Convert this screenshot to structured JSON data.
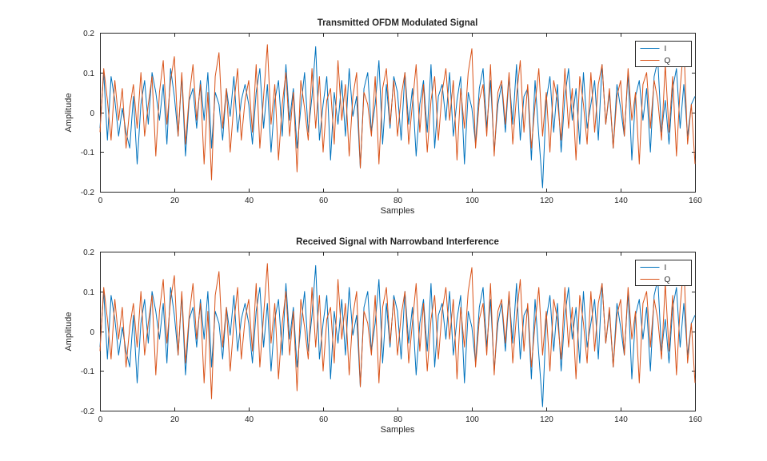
{
  "figure": {
    "background": "#ffffff",
    "axis_color": "#262626",
    "text_color": "#262626"
  },
  "chart_data": [
    {
      "type": "line",
      "title": "Transmitted OFDM Modulated Signal",
      "xlabel": "Samples",
      "ylabel": "Amplitude",
      "xlim": [
        0,
        160
      ],
      "ylim": [
        -0.2,
        0.2
      ],
      "xticks": [
        0,
        20,
        40,
        60,
        80,
        100,
        120,
        140,
        160
      ],
      "xtick_labels": [
        "0",
        "20",
        "40",
        "60",
        "80",
        "100",
        "120",
        "140",
        "160"
      ],
      "yticks": [
        -0.2,
        -0.1,
        0,
        0.1,
        0.2
      ],
      "ytick_labels": [
        "-0.2",
        "-0.1",
        "0",
        "0.1",
        "0.2"
      ],
      "grid": false,
      "legend": {
        "position": "northeast",
        "entries": [
          "I",
          "Q"
        ]
      },
      "x_start": 0,
      "x_step": 1,
      "series": [
        {
          "name": "I",
          "color": "#0072BD",
          "values": [
            -0.04,
            0.1,
            -0.07,
            0.09,
            0.03,
            -0.06,
            0.01,
            -0.05,
            -0.09,
            0.04,
            -0.13,
            0.02,
            0.08,
            -0.03,
            0.1,
            0.05,
            -0.02,
            0.07,
            -0.08,
            0.11,
            0.04,
            -0.06,
            0.09,
            -0.11,
            0.03,
            0.06,
            -0.04,
            0.08,
            -0.02,
            0.1,
            -0.09,
            0.05,
            0.02,
            -0.07,
            0.06,
            -0.01,
            0.09,
            -0.05,
            0.03,
            0.07,
            0.02,
            -0.08,
            0.05,
            0.11,
            -0.04,
            0.07,
            -0.1,
            0.03,
            0.08,
            -0.06,
            0.12,
            -0.02,
            0.06,
            -0.09,
            0.01,
            0.1,
            -0.05,
            0.04,
            0.165,
            -0.07,
            0.02,
            0.09,
            -0.12,
            0.05,
            -0.03,
            0.08,
            -0.06,
            0.11,
            -0.01,
            0.04,
            -0.14,
            0.06,
            0.1,
            -0.05,
            0.02,
            0.13,
            -0.08,
            0.07,
            -0.04,
            0.09,
            0.05,
            -0.07,
            0.1,
            -0.03,
            0.06,
            -0.11,
            0.02,
            0.08,
            -0.05,
            0.12,
            -0.09,
            0.04,
            0.07,
            -0.02,
            0.1,
            -0.06,
            0.03,
            0.09,
            -0.13,
            0.05,
            0.01,
            -0.08,
            0.06,
            0.11,
            -0.04,
            0.08,
            -0.1,
            0.02,
            0.07,
            -0.05,
            0.09,
            -0.03,
            0.12,
            -0.07,
            0.04,
            0.06,
            -0.12,
            0.08,
            -0.06,
            -0.19,
            0.03,
            0.09,
            -0.05,
            0.07,
            -0.1,
            0.04,
            0.11,
            -0.02,
            0.06,
            -0.08,
            0.1,
            -0.04,
            0.02,
            0.08,
            -0.07,
            0.12,
            -0.03,
            0.05,
            -0.09,
            0.07,
            0.01,
            -0.06,
            0.1,
            -0.12,
            0.04,
            0.08,
            -0.02,
            0.06,
            -0.1,
            0.09,
            0.13,
            -0.05,
            0.03,
            -0.08,
            0.06,
            0.11,
            -0.04,
            0.07,
            -0.06,
            0.02,
            0.04
          ]
        },
        {
          "name": "Q",
          "color": "#D95319",
          "values": [
            -0.05,
            0.11,
            0.03,
            -0.07,
            0.08,
            -0.02,
            0.06,
            -0.09,
            0.01,
            0.07,
            -0.04,
            0.1,
            -0.06,
            0.02,
            0.09,
            -0.11,
            0.05,
            0.13,
            -0.03,
            0.08,
            0.14,
            -0.06,
            0.1,
            -0.08,
            0.04,
            0.12,
            -0.02,
            0.07,
            -0.13,
            0.05,
            -0.17,
            0.09,
            0.15,
            -0.04,
            0.06,
            -0.1,
            0.02,
            0.11,
            -0.07,
            0.03,
            0.08,
            -0.05,
            0.12,
            -0.09,
            0.04,
            0.17,
            -0.03,
            0.07,
            -0.12,
            0.02,
            0.1,
            -0.06,
            0.05,
            -0.15,
            0.08,
            0.01,
            -0.07,
            0.11,
            -0.04,
            0.09,
            -0.1,
            0.03,
            0.06,
            -0.08,
            0.13,
            -0.02,
            0.07,
            -0.11,
            0.04,
            0.1,
            -0.14,
            0.05,
            0.02,
            -0.06,
            0.09,
            -0.13,
            0.06,
            0.11,
            -0.03,
            0.08,
            -0.06,
            0.04,
            0.1,
            -0.08,
            0.02,
            0.12,
            -0.05,
            0.07,
            -0.1,
            0.03,
            0.09,
            -0.07,
            0.05,
            0.11,
            -0.02,
            0.08,
            -0.12,
            0.06,
            -0.04,
            0.1,
            0.16,
            -0.09,
            0.03,
            0.07,
            -0.06,
            0.12,
            -0.11,
            0.05,
            0.08,
            -0.03,
            0.1,
            -0.08,
            0.04,
            0.13,
            -0.05,
            0.07,
            -0.09,
            0.02,
            0.11,
            -0.06,
            0.05,
            -0.1,
            0.08,
            0.03,
            -0.07,
            0.11,
            -0.04,
            0.06,
            -0.12,
            0.09,
            0.02,
            -0.08,
            0.1,
            -0.05,
            0.07,
            0.12,
            -0.03,
            0.06,
            -0.09,
            0.04,
            0.08,
            -0.06,
            0.11,
            -0.02,
            0.05,
            -0.13,
            0.07,
            0.1,
            -0.04,
            0.08,
            0.03,
            -0.07,
            0.12,
            -0.05,
            0.09,
            -0.11,
            0.06,
            0.17,
            -0.08,
            0.02,
            -0.13
          ]
        }
      ]
    },
    {
      "type": "line",
      "title": "Received Signal with Narrowband Interference",
      "xlabel": "Samples",
      "ylabel": "Amplitude",
      "xlim": [
        0,
        160
      ],
      "ylim": [
        -0.2,
        0.2
      ],
      "xticks": [
        0,
        20,
        40,
        60,
        80,
        100,
        120,
        140,
        160
      ],
      "xtick_labels": [
        "0",
        "20",
        "40",
        "60",
        "80",
        "100",
        "120",
        "140",
        "160"
      ],
      "yticks": [
        -0.2,
        -0.1,
        0,
        0.1,
        0.2
      ],
      "ytick_labels": [
        "-0.2",
        "-0.1",
        "0",
        "0.1",
        "0.2"
      ],
      "grid": false,
      "legend": {
        "position": "northeast",
        "entries": [
          "I",
          "Q"
        ]
      },
      "x_start": 0,
      "x_step": 1,
      "series": [
        {
          "name": "I",
          "color": "#0072BD",
          "values": [
            -0.04,
            0.1,
            -0.07,
            0.09,
            0.03,
            -0.06,
            0.01,
            -0.05,
            -0.09,
            0.04,
            -0.13,
            0.02,
            0.08,
            -0.03,
            0.1,
            0.05,
            -0.02,
            0.07,
            -0.08,
            0.11,
            0.04,
            -0.06,
            0.09,
            -0.11,
            0.03,
            0.06,
            -0.04,
            0.08,
            -0.02,
            0.1,
            -0.09,
            0.05,
            0.02,
            -0.07,
            0.06,
            -0.01,
            0.09,
            -0.05,
            0.03,
            0.07,
            0.02,
            -0.08,
            0.05,
            0.11,
            -0.04,
            0.07,
            -0.1,
            0.03,
            0.08,
            -0.06,
            0.12,
            -0.02,
            0.06,
            -0.09,
            0.01,
            0.1,
            -0.05,
            0.04,
            0.165,
            -0.07,
            0.02,
            0.09,
            -0.12,
            0.05,
            -0.03,
            0.08,
            -0.06,
            0.11,
            -0.01,
            0.04,
            -0.14,
            0.06,
            0.1,
            -0.05,
            0.02,
            0.13,
            -0.08,
            0.07,
            -0.04,
            0.09,
            0.05,
            -0.07,
            0.1,
            -0.03,
            0.06,
            -0.11,
            0.02,
            0.08,
            -0.05,
            0.12,
            -0.09,
            0.04,
            0.07,
            -0.02,
            0.1,
            -0.06,
            0.03,
            0.09,
            -0.13,
            0.05,
            0.01,
            -0.08,
            0.06,
            0.11,
            -0.04,
            0.08,
            -0.1,
            0.02,
            0.07,
            -0.05,
            0.09,
            -0.03,
            0.12,
            -0.07,
            0.04,
            0.06,
            -0.12,
            0.08,
            -0.06,
            -0.19,
            0.03,
            0.09,
            -0.05,
            0.07,
            -0.1,
            0.04,
            0.11,
            -0.02,
            0.06,
            -0.08,
            0.1,
            -0.04,
            0.02,
            0.08,
            -0.07,
            0.12,
            -0.03,
            0.05,
            -0.09,
            0.07,
            0.01,
            -0.06,
            0.1,
            -0.12,
            0.04,
            0.08,
            -0.02,
            0.06,
            -0.1,
            0.09,
            0.13,
            -0.05,
            0.03,
            -0.08,
            0.06,
            0.11,
            -0.04,
            0.07,
            -0.06,
            0.02,
            0.04
          ]
        },
        {
          "name": "Q",
          "color": "#D95319",
          "values": [
            -0.05,
            0.11,
            0.03,
            -0.07,
            0.08,
            -0.02,
            0.06,
            -0.09,
            0.01,
            0.07,
            -0.04,
            0.1,
            -0.06,
            0.02,
            0.09,
            -0.11,
            0.05,
            0.13,
            -0.03,
            0.08,
            0.14,
            -0.06,
            0.1,
            -0.08,
            0.04,
            0.12,
            -0.02,
            0.07,
            -0.13,
            0.05,
            -0.17,
            0.09,
            0.15,
            -0.04,
            0.06,
            -0.1,
            0.02,
            0.11,
            -0.07,
            0.03,
            0.08,
            -0.05,
            0.12,
            -0.09,
            0.04,
            0.17,
            -0.03,
            0.07,
            -0.12,
            0.02,
            0.1,
            -0.06,
            0.05,
            -0.15,
            0.08,
            0.01,
            -0.07,
            0.11,
            -0.04,
            0.09,
            -0.1,
            0.03,
            0.06,
            -0.08,
            0.13,
            -0.02,
            0.07,
            -0.11,
            0.04,
            0.1,
            -0.14,
            0.05,
            0.02,
            -0.06,
            0.09,
            -0.13,
            0.06,
            0.11,
            -0.03,
            0.08,
            -0.06,
            0.04,
            0.1,
            -0.08,
            0.02,
            0.12,
            -0.05,
            0.07,
            -0.1,
            0.03,
            0.09,
            -0.07,
            0.05,
            0.11,
            -0.02,
            0.08,
            -0.12,
            0.06,
            -0.04,
            0.1,
            0.16,
            -0.09,
            0.03,
            0.07,
            -0.06,
            0.12,
            -0.11,
            0.05,
            0.08,
            -0.03,
            0.1,
            -0.08,
            0.04,
            0.13,
            -0.05,
            0.07,
            -0.09,
            0.02,
            0.11,
            -0.06,
            0.05,
            -0.1,
            0.08,
            0.03,
            -0.07,
            0.11,
            -0.04,
            0.06,
            -0.12,
            0.09,
            0.02,
            -0.08,
            0.1,
            -0.05,
            0.07,
            0.12,
            -0.03,
            0.06,
            -0.09,
            0.04,
            0.08,
            -0.06,
            0.11,
            -0.02,
            0.05,
            -0.13,
            0.07,
            0.1,
            -0.04,
            0.08,
            0.03,
            -0.07,
            0.12,
            -0.05,
            0.09,
            -0.11,
            0.06,
            0.17,
            -0.08,
            0.02,
            -0.13
          ]
        }
      ]
    }
  ]
}
